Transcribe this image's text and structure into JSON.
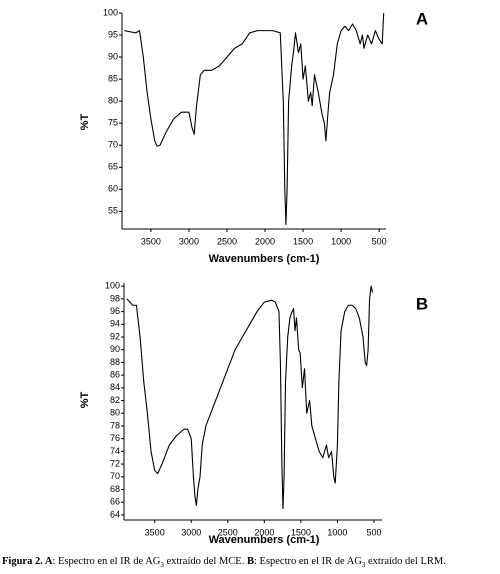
{
  "chart_data": [
    {
      "type": "line",
      "label": "A",
      "x_label": "Wavenumbers (cm-1)",
      "y_label": "%T",
      "xlim": [
        3880,
        410
      ],
      "ylim": [
        51,
        100
      ],
      "xticks": [
        3500,
        3000,
        2500,
        2000,
        1500,
        1000,
        500
      ],
      "yticks": [
        55,
        60,
        65,
        70,
        75,
        80,
        85,
        90,
        95,
        100
      ],
      "x": [
        3850,
        3700,
        3650,
        3600,
        3550,
        3500,
        3450,
        3420,
        3380,
        3300,
        3200,
        3100,
        3000,
        2960,
        2930,
        2920,
        2900,
        2850,
        2800,
        2700,
        2600,
        2500,
        2400,
        2300,
        2200,
        2100,
        1900,
        1800,
        1760,
        1740,
        1725,
        1710,
        1690,
        1650,
        1620,
        1600,
        1560,
        1530,
        1500,
        1470,
        1430,
        1400,
        1380,
        1350,
        1300,
        1250,
        1220,
        1200,
        1170,
        1150,
        1100,
        1050,
        1000,
        950,
        900,
        850,
        800,
        750,
        720,
        700,
        650,
        600,
        550,
        500,
        460,
        440
      ],
      "series": [
        {
          "color": "#000000",
          "values": [
            96,
            95.5,
            96,
            90,
            82,
            76,
            71,
            69.8,
            70,
            73,
            76,
            77.5,
            77.5,
            74,
            72.5,
            75,
            79,
            86,
            87,
            87,
            88,
            90,
            92,
            93,
            95.5,
            96,
            96,
            95.5,
            80,
            60,
            52,
            60,
            80,
            88,
            92,
            95.5,
            91,
            93,
            85,
            88,
            80,
            82,
            79,
            86,
            82,
            77,
            75,
            71,
            78,
            82,
            86,
            93,
            96,
            97,
            96,
            97.5,
            96,
            93,
            95,
            92,
            95,
            93,
            96,
            94,
            93,
            100
          ]
        }
      ]
    },
    {
      "type": "line",
      "label": "B",
      "x_label": "Wavenumbers (cm-1)",
      "y_label": "%T",
      "xlim": [
        3920,
        390
      ],
      "ylim": [
        63.2,
        100.5
      ],
      "xticks": [
        3500,
        3000,
        2500,
        2000,
        1500,
        1000,
        500
      ],
      "yticks": [
        64,
        66,
        68,
        70,
        72,
        74,
        76,
        78,
        80,
        82,
        84,
        86,
        88,
        90,
        92,
        94,
        96,
        98,
        100
      ],
      "x": [
        3880,
        3800,
        3750,
        3700,
        3650,
        3600,
        3550,
        3500,
        3460,
        3400,
        3300,
        3200,
        3100,
        3050,
        3000,
        2970,
        2950,
        2930,
        2910,
        2880,
        2850,
        2800,
        2700,
        2600,
        2500,
        2400,
        2300,
        2200,
        2100,
        2000,
        1900,
        1850,
        1800,
        1780,
        1760,
        1745,
        1730,
        1710,
        1680,
        1650,
        1620,
        1600,
        1580,
        1560,
        1530,
        1510,
        1480,
        1450,
        1420,
        1380,
        1350,
        1300,
        1250,
        1200,
        1150,
        1120,
        1080,
        1050,
        1030,
        1000,
        980,
        950,
        900,
        850,
        800,
        750,
        700,
        650,
        620,
        600,
        580,
        560,
        540,
        520
      ],
      "series": [
        {
          "color": "#000000",
          "values": [
            98,
            97,
            97,
            92,
            85,
            80,
            74,
            71,
            70.5,
            72,
            75,
            76.5,
            77.5,
            77.5,
            76,
            70,
            67,
            65.5,
            68,
            70,
            75,
            78,
            81,
            84,
            87,
            90,
            92,
            94,
            96,
            97.5,
            97.8,
            97.5,
            96,
            88,
            72,
            65,
            70,
            85,
            92,
            95,
            96,
            96.5,
            93,
            95,
            90,
            89.5,
            84,
            87,
            80,
            82,
            78,
            76,
            74,
            73,
            75,
            73,
            74,
            70,
            69,
            75,
            85,
            93,
            96,
            97,
            97,
            96.5,
            95,
            92,
            88,
            87.5,
            90,
            98,
            100,
            99
          ]
        }
      ]
    }
  ],
  "caption": [
    {
      "text": "Figura 2. A",
      "bold": true
    },
    {
      "text": ": Espectro en el IR de AG"
    },
    {
      "text": "3",
      "sub": true
    },
    {
      "text": " extraído del MCE. "
    },
    {
      "text": "B",
      "bold": true
    },
    {
      "text": ": Espectro en el IR de AG"
    },
    {
      "text": "3",
      "sub": true
    },
    {
      "text": " extraído del LRM."
    }
  ]
}
